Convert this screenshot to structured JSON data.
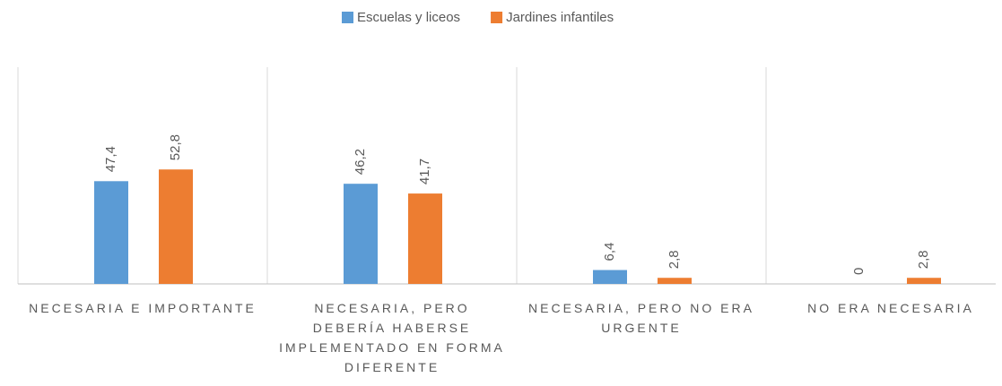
{
  "chart_data": {
    "type": "bar",
    "categories": [
      "NECESARIA E IMPORTANTE",
      "NECESARIA, PERO DEBERÍA HABERSE IMPLEMENTADO EN FORMA DIFERENTE",
      "NECESARIA, PERO NO ERA URGENTE",
      "NO ERA NECESARIA"
    ],
    "series": [
      {
        "name": "Escuelas y liceos",
        "color": "#5b9bd5",
        "values": [
          47.4,
          46.2,
          6.4,
          0
        ],
        "value_labels": [
          "47,4",
          "46,2",
          "6,4",
          "0"
        ]
      },
      {
        "name": "Jardines infantiles",
        "color": "#ed7d31",
        "values": [
          52.8,
          41.7,
          2.8,
          2.8
        ],
        "value_labels": [
          "52,8",
          "41,7",
          "2,8",
          "2,8"
        ]
      }
    ],
    "ylim": [
      0,
      100
    ],
    "legend": "top"
  }
}
